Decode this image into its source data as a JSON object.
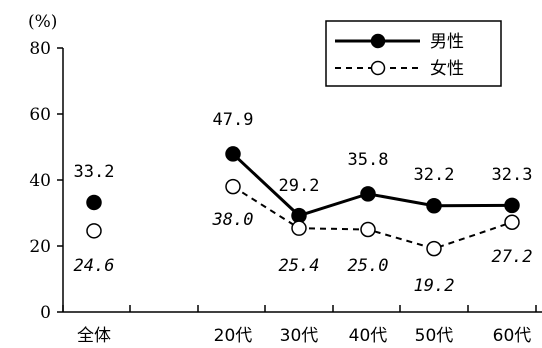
{
  "chart_data": {
    "type": "line",
    "unit_label": "(%)",
    "ylim": [
      0,
      80
    ],
    "yticks": [
      0,
      20,
      40,
      60,
      80
    ],
    "grid": false,
    "legend_position": "top-right",
    "total_label": "全体",
    "categories": [
      "20代",
      "30代",
      "40代",
      "50代",
      "60代"
    ],
    "series": [
      {
        "name": "男性",
        "style": "solid",
        "marker": "filled-circle",
        "total": 33.2,
        "total_label": "33.2",
        "values": [
          47.9,
          29.2,
          35.8,
          32.2,
          32.3
        ],
        "value_labels": [
          "47.9",
          "29.2",
          "35.8",
          "32.2",
          "32.3"
        ]
      },
      {
        "name": "女性",
        "style": "dashed",
        "marker": "open-circle",
        "total": 24.6,
        "total_label": "24.6",
        "values": [
          38.0,
          25.4,
          25.0,
          19.2,
          27.2
        ],
        "value_labels": [
          "38.0",
          "25.4",
          "25.0",
          "19.2",
          "27.2"
        ]
      }
    ]
  }
}
